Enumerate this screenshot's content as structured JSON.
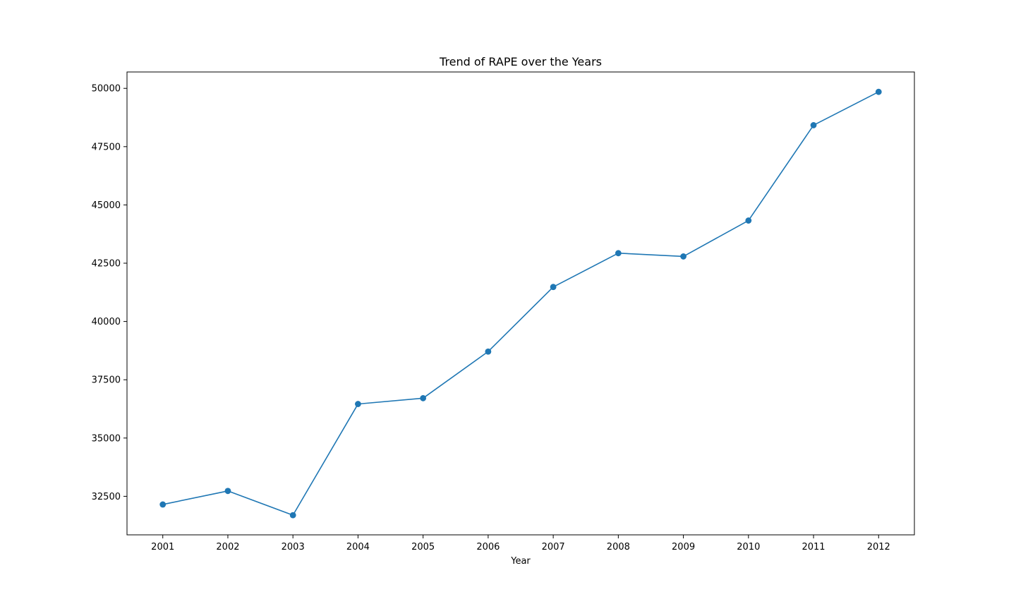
{
  "chart_data": {
    "type": "line",
    "title": "Trend of RAPE over the Years",
    "xlabel": "Year",
    "ylabel": "",
    "x": [
      2001,
      2002,
      2003,
      2004,
      2005,
      2006,
      2007,
      2008,
      2009,
      2010,
      2011,
      2012
    ],
    "series": [
      {
        "values": [
          32150,
          32730,
          31690,
          36460,
          36710,
          38710,
          41480,
          42930,
          42790,
          44330,
          48420,
          49850
        ],
        "color": "#1f77b4",
        "marker": "circle"
      }
    ],
    "xlim": [
      2000.45,
      2012.55
    ],
    "ylim": [
      30847,
      50703
    ],
    "yticks": [
      32500,
      35000,
      37500,
      40000,
      42500,
      45000,
      47500,
      50000
    ],
    "grid": false,
    "legend": "none"
  }
}
